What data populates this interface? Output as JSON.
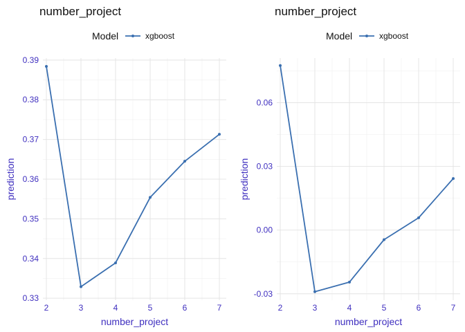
{
  "chart_data": [
    {
      "type": "line",
      "title": "number_project",
      "xlabel": "number_project",
      "ylabel": "prediction",
      "legend": {
        "title": "Model",
        "position": "top"
      },
      "grid": true,
      "x": [
        2,
        3,
        4,
        5,
        6,
        7
      ],
      "xticks": [
        "2",
        "3",
        "4",
        "5",
        "6",
        "7"
      ],
      "xlim": [
        1.9,
        7.2
      ],
      "ylim": [
        0.3295,
        0.3905
      ],
      "yticks": [
        0.33,
        0.34,
        0.35,
        0.36,
        0.37,
        0.38,
        0.39
      ],
      "ytick_labels": [
        "0.33",
        "0.34",
        "0.35",
        "0.36",
        "0.37",
        "0.38",
        "0.39"
      ],
      "series": [
        {
          "name": "xgboost",
          "color": "#3a6fb0",
          "values": [
            0.3884,
            0.3329,
            0.3389,
            0.3554,
            0.3645,
            0.3713
          ]
        }
      ]
    },
    {
      "type": "line",
      "title": "number_project",
      "xlabel": "number_project",
      "ylabel": "prediction",
      "legend": {
        "title": "Model",
        "position": "top"
      },
      "grid": true,
      "x": [
        2,
        3,
        4,
        5,
        6,
        7
      ],
      "xticks": [
        "2",
        "3",
        "4",
        "5",
        "6",
        "7"
      ],
      "xlim": [
        1.9,
        7.2
      ],
      "ylim": [
        -0.033,
        0.081
      ],
      "yticks": [
        -0.03,
        0.0,
        0.03,
        0.06
      ],
      "ytick_labels": [
        "-0.03",
        "0.00",
        "0.03",
        "0.06"
      ],
      "series": [
        {
          "name": "xgboost",
          "color": "#3a6fb0",
          "values": [
            0.0775,
            -0.029,
            -0.0245,
            -0.0045,
            0.0058,
            0.0243
          ]
        }
      ]
    }
  ]
}
